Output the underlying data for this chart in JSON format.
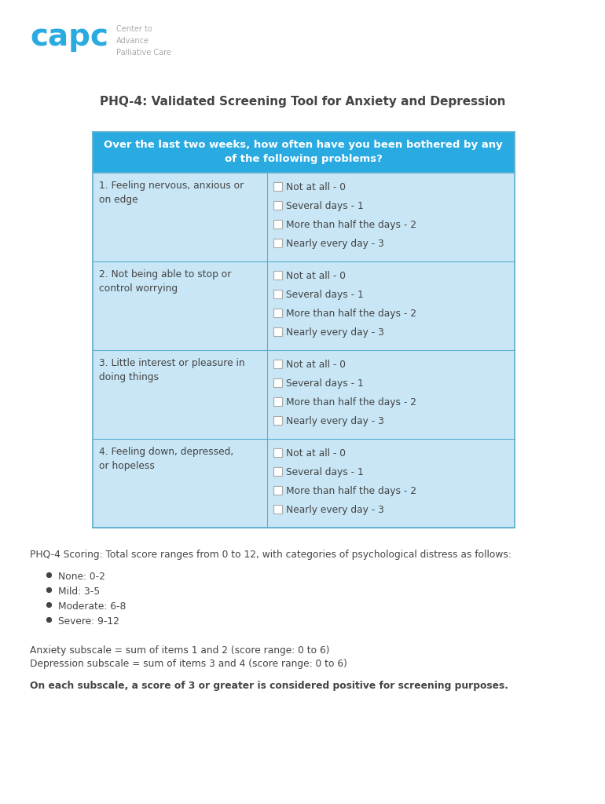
{
  "title": "PHQ-4: Validated Screening Tool for Anxiety and Depression",
  "header_text_line1": "Over the last two weeks, how often have you been bothered by any",
  "header_text_line2": "of the following problems?",
  "header_bg": "#29ABE2",
  "header_text_color": "#FFFFFF",
  "table_bg": "#C8E6F5",
  "table_border": "#5BAECF",
  "questions": [
    "1. Feeling nervous, anxious or\non edge",
    "2. Not being able to stop or\ncontrol worrying",
    "3. Little interest or pleasure in\ndoing things",
    "4. Feeling down, depressed,\nor hopeless"
  ],
  "options": [
    "Not at all - 0",
    "Several days - 1",
    "More than half the days - 2",
    "Nearly every day - 3"
  ],
  "scoring_title": "PHQ-4 Scoring: Total score ranges from 0 to 12, with categories of psychological distress as follows:",
  "categories": [
    "None: 0-2",
    "Mild: 3-5",
    "Moderate: 6-8",
    "Severe: 9-12"
  ],
  "subscale_line1": "Anxiety subscale = sum of items 1 and 2 (score range: 0 to 6)",
  "subscale_line2": "Depression subscale = sum of items 3 and 4 (score range: 0 to 6)",
  "bold_note": "On each subscale, a score of 3 or greater is considered positive for screening purposes.",
  "capc_color": "#29ABE2",
  "capc_subtext_color": "#AAAAAA",
  "bg_color": "#FFFFFF",
  "text_color": "#444444"
}
